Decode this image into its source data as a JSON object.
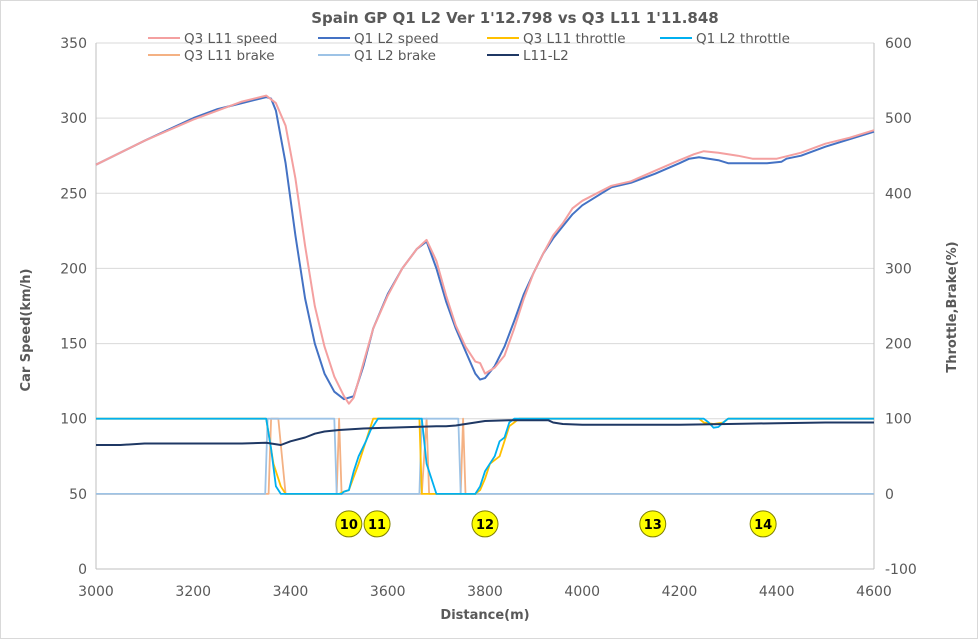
{
  "chart_data": {
    "type": "line",
    "title": "Spain GP Q1 L2 Ver 1'12.798 vs Q3 L11 1'11.848",
    "xlabel": "Distance(m)",
    "ylabel": "Car Speed(km/h)",
    "y2label": "Throttle,Brake(%)",
    "xlim": [
      3000,
      4600
    ],
    "ylim": [
      0,
      350
    ],
    "y2lim": [
      -100,
      600
    ],
    "xticks": [
      3000,
      3200,
      3400,
      3600,
      3800,
      4000,
      4200,
      4400,
      4600
    ],
    "yticks": [
      0,
      50,
      100,
      150,
      200,
      250,
      300,
      350
    ],
    "y2ticks": [
      -100,
      0,
      100,
      200,
      300,
      400,
      500,
      600
    ],
    "grid": "horizontal",
    "legend": "top",
    "series": [
      {
        "name": "Q3 L11 speed",
        "axis": "left",
        "color": "#f4a0a0",
        "x": [
          3000,
          3100,
          3200,
          3250,
          3300,
          3350,
          3370,
          3390,
          3410,
          3430,
          3450,
          3470,
          3490,
          3510,
          3520,
          3530,
          3550,
          3570,
          3600,
          3630,
          3660,
          3680,
          3700,
          3720,
          3740,
          3760,
          3770,
          3780,
          3790,
          3800,
          3820,
          3840,
          3860,
          3880,
          3900,
          3920,
          3940,
          3960,
          3980,
          4000,
          4030,
          4060,
          4100,
          4150,
          4200,
          4230,
          4250,
          4280,
          4300,
          4320,
          4350,
          4380,
          4400,
          4450,
          4500,
          4550,
          4600
        ],
        "y": [
          269,
          285,
          299,
          305,
          311,
          315,
          310,
          295,
          260,
          215,
          175,
          148,
          128,
          115,
          110,
          114,
          137,
          160,
          182,
          200,
          213,
          219,
          205,
          182,
          162,
          148,
          143,
          138,
          137,
          130,
          134,
          142,
          160,
          180,
          197,
          210,
          222,
          230,
          240,
          245,
          250,
          255,
          258,
          265,
          272,
          276,
          278,
          277,
          276,
          275,
          273,
          273,
          273,
          277,
          283,
          287,
          292
        ]
      },
      {
        "name": "Q1 L2 speed",
        "axis": "left",
        "color": "#4472c4",
        "x": [
          3000,
          3100,
          3200,
          3250,
          3300,
          3350,
          3360,
          3370,
          3390,
          3410,
          3430,
          3450,
          3470,
          3490,
          3510,
          3530,
          3550,
          3570,
          3600,
          3630,
          3660,
          3680,
          3700,
          3720,
          3740,
          3760,
          3780,
          3790,
          3800,
          3820,
          3840,
          3860,
          3880,
          3900,
          3920,
          3940,
          3960,
          3980,
          4000,
          4030,
          4060,
          4100,
          4150,
          4200,
          4220,
          4240,
          4260,
          4280,
          4300,
          4320,
          4360,
          4380,
          4410,
          4420,
          4450,
          4500,
          4550,
          4600
        ],
        "y": [
          269,
          285,
          300,
          306,
          310,
          314,
          313,
          305,
          270,
          222,
          180,
          150,
          130,
          118,
          113,
          115,
          135,
          160,
          183,
          200,
          213,
          218,
          200,
          178,
          160,
          145,
          130,
          126,
          127,
          135,
          148,
          165,
          183,
          197,
          210,
          220,
          228,
          236,
          242,
          248,
          254,
          257,
          263,
          270,
          273,
          274,
          273,
          272,
          270,
          270,
          270,
          270,
          271,
          273,
          275,
          281,
          286,
          291
        ]
      },
      {
        "name": "Q3 L11 throttle",
        "axis": "right",
        "color": "#ffc000",
        "x": [
          3000,
          3350,
          3365,
          3380,
          3390,
          3490,
          3500,
          3510,
          3520,
          3540,
          3560,
          3570,
          3580,
          3650,
          3665,
          3670,
          3680,
          3780,
          3790,
          3800,
          3810,
          3830,
          3850,
          3860,
          3870,
          4230,
          4240,
          4250,
          4270,
          4290,
          4300,
          4600
        ],
        "y": [
          100,
          100,
          40,
          10,
          0,
          0,
          0,
          3,
          5,
          40,
          80,
          100,
          100,
          100,
          100,
          0,
          0,
          0,
          5,
          20,
          40,
          50,
          90,
          95,
          100,
          100,
          100,
          95,
          93,
          95,
          100,
          100
        ]
      },
      {
        "name": "Q1 L2 throttle",
        "axis": "right",
        "color": "#00b0f0",
        "x": [
          3000,
          3350,
          3360,
          3370,
          3380,
          3490,
          3505,
          3510,
          3520,
          3530,
          3540,
          3555,
          3565,
          3580,
          3650,
          3660,
          3670,
          3680,
          3690,
          3700,
          3760,
          3780,
          3790,
          3800,
          3820,
          3830,
          3840,
          3850,
          3860,
          3870,
          4250,
          4260,
          4270,
          4280,
          4290,
          4300,
          4600
        ],
        "y": [
          100,
          100,
          60,
          10,
          0,
          0,
          0,
          3,
          5,
          30,
          50,
          70,
          85,
          100,
          100,
          100,
          100,
          40,
          20,
          0,
          0,
          0,
          10,
          30,
          50,
          70,
          75,
          95,
          100,
          100,
          100,
          95,
          88,
          89,
          95,
          100,
          100
        ]
      },
      {
        "name": "Q3 L11 brake",
        "axis": "right",
        "color": "#f4b183",
        "x": [
          3000,
          3355,
          3360,
          3375,
          3390,
          3495,
          3500,
          3505,
          3670,
          3680,
          3685,
          3750,
          3755,
          3760,
          4600
        ],
        "y": [
          0,
          0,
          100,
          100,
          0,
          0,
          100,
          0,
          0,
          100,
          0,
          0,
          100,
          0,
          0
        ]
      },
      {
        "name": "Q1 L2 brake",
        "axis": "right",
        "color": "#9dc3e6",
        "x": [
          3000,
          3348,
          3353,
          3490,
          3495,
          3500,
          3665,
          3670,
          3745,
          3750,
          3755,
          4600
        ],
        "y": [
          0,
          0,
          100,
          100,
          0,
          0,
          0,
          100,
          100,
          0,
          0,
          0
        ]
      },
      {
        "name": "L11-L2",
        "axis": "right",
        "color": "#1f3864",
        "x": [
          3000,
          3050,
          3100,
          3200,
          3300,
          3350,
          3380,
          3400,
          3430,
          3450,
          3470,
          3500,
          3550,
          3600,
          3650,
          3700,
          3720,
          3740,
          3760,
          3780,
          3800,
          3850,
          3900,
          3930,
          3940,
          3960,
          4000,
          4100,
          4200,
          4300,
          4400,
          4500,
          4600
        ],
        "y": [
          65,
          65,
          67,
          67,
          67,
          68,
          65,
          70,
          75,
          80,
          83,
          85,
          87,
          88,
          89,
          90,
          90,
          91,
          93,
          95,
          97,
          98,
          98,
          98,
          95,
          93,
          92,
          92,
          92,
          93,
          94,
          95,
          95
        ]
      }
    ],
    "annotations": [
      {
        "label": "10",
        "x": 3520,
        "y": 30
      },
      {
        "label": "11",
        "x": 3578,
        "y": 30
      },
      {
        "label": "12",
        "x": 3800,
        "y": 30
      },
      {
        "label": "13",
        "x": 4145,
        "y": 30
      },
      {
        "label": "14",
        "x": 4372,
        "y": 30
      }
    ]
  },
  "annotation_style": {
    "fill": "#ffff00",
    "stroke": "#7f7f00",
    "text_color": "#000000"
  }
}
